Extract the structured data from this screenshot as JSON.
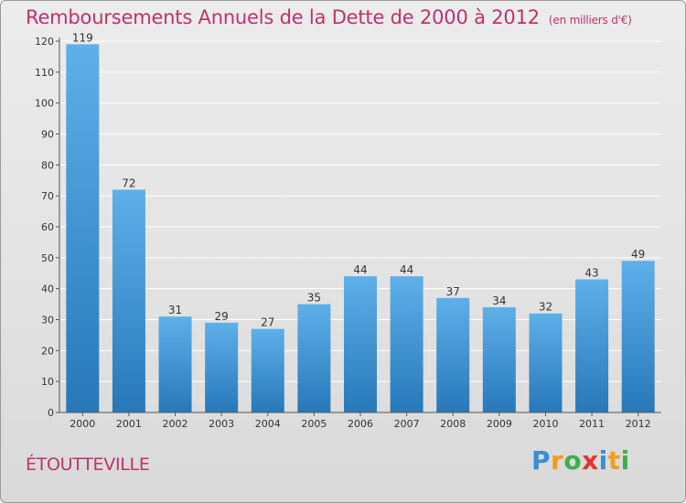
{
  "title": "Remboursements Annuels de la Dette de 2000 à 2012",
  "unit": "(en milliers d'€)",
  "town": "ÉTOUTTEVILLE",
  "brand": {
    "text": "Proxiti",
    "letters": [
      "P",
      "r",
      "o",
      "x",
      "i",
      "t",
      "i"
    ],
    "colors": [
      "#3a8fd0",
      "#f29c1e",
      "#3fae49",
      "#e8332a",
      "#3a8fd0",
      "#f29c1e",
      "#3fae49"
    ]
  },
  "colors": {
    "title": "#c0316e",
    "bar_top": "#5eb0ea",
    "bar_bottom": "#2778b9"
  },
  "chart_data": {
    "type": "bar",
    "categories": [
      "2000",
      "2001",
      "2002",
      "2003",
      "2004",
      "2005",
      "2006",
      "2007",
      "2008",
      "2009",
      "2010",
      "2011",
      "2012"
    ],
    "values": [
      119,
      72,
      31,
      29,
      27,
      35,
      44,
      44,
      37,
      34,
      32,
      43,
      49
    ],
    "yticks": [
      0,
      10,
      20,
      30,
      40,
      50,
      60,
      70,
      80,
      90,
      100,
      110,
      120
    ],
    "ylim": [
      0,
      120
    ],
    "grid": true
  }
}
